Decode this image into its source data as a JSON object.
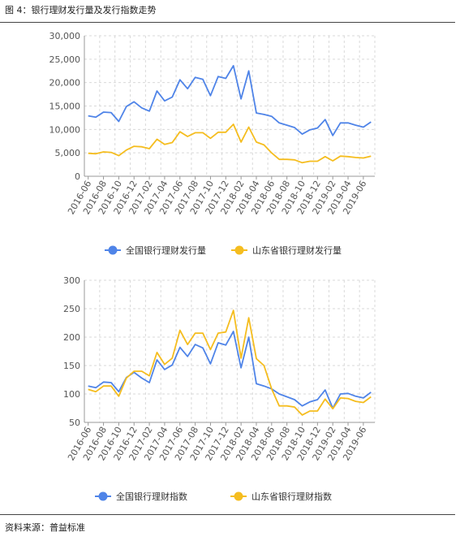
{
  "figure": {
    "title": "图 4：银行理财发行量及发行指数走势",
    "source": "资料来源：普益标准"
  },
  "colors": {
    "blue": "#4f84e8",
    "yellow": "#f5bd1f",
    "grid": "#d9d9d9",
    "axis": "#999999"
  },
  "chart_data": [
    {
      "type": "line",
      "title": "",
      "xlabel": "",
      "ylabel": "",
      "ylim": [
        0,
        30000
      ],
      "yticks": [
        0,
        5000,
        10000,
        15000,
        20000,
        25000,
        30000
      ],
      "yticklabels": [
        "0",
        "5,000",
        "10,000",
        "15,000",
        "20,000",
        "25,000",
        "30,000"
      ],
      "grid": true,
      "legend": "bottom",
      "x": [
        "2016-06",
        "2016-07",
        "2016-08",
        "2016-09",
        "2016-10",
        "2016-11",
        "2016-12",
        "2017-01",
        "2017-02",
        "2017-03",
        "2017-04",
        "2017-05",
        "2017-06",
        "2017-07",
        "2017-08",
        "2017-09",
        "2017-10",
        "2017-11",
        "2017-12",
        "2018-01",
        "2018-02",
        "2018-03",
        "2018-04",
        "2018-05",
        "2018-06",
        "2018-07",
        "2018-08",
        "2018-09",
        "2018-10",
        "2018-11",
        "2018-12",
        "2019-01",
        "2019-02",
        "2019-03",
        "2019-04",
        "2019-05",
        "2019-06",
        "2019-07"
      ],
      "xticklabels": [
        "2016-06",
        "2016-08",
        "2016-10",
        "2016-12",
        "2017-02",
        "2017-04",
        "2017-06",
        "2017-08",
        "2017-10",
        "2017-12",
        "2018-02",
        "2018-04",
        "2018-06",
        "2018-08",
        "2018-10",
        "2018-12",
        "2019-02",
        "2019-04",
        "2019-06"
      ],
      "series": [
        {
          "name": "全国银行理财发行量",
          "color": "#4f84e8",
          "values": [
            12900,
            12600,
            13700,
            13600,
            11700,
            14900,
            15900,
            14600,
            13900,
            18200,
            16100,
            16900,
            20600,
            18700,
            21100,
            20700,
            17200,
            21300,
            20900,
            23600,
            16500,
            22500,
            13500,
            13200,
            12800,
            11400,
            10900,
            10400,
            9000,
            9900,
            10300,
            12100,
            8700,
            11400,
            11400,
            10900,
            10500,
            11600
          ]
        },
        {
          "name": "山东省银行理财发行量",
          "color": "#f5bd1f",
          "values": [
            4900,
            4800,
            5200,
            5100,
            4400,
            5600,
            6400,
            6300,
            5900,
            7900,
            6800,
            7200,
            9500,
            8500,
            9300,
            9300,
            8100,
            9400,
            9400,
            11100,
            7300,
            10500,
            7300,
            6700,
            5000,
            3600,
            3600,
            3500,
            2900,
            3200,
            3200,
            4200,
            3300,
            4300,
            4200,
            4000,
            3900,
            4300
          ]
        }
      ]
    },
    {
      "type": "line",
      "title": "",
      "xlabel": "",
      "ylabel": "",
      "ylim": [
        50,
        300
      ],
      "yticks": [
        50,
        100,
        150,
        200,
        250,
        300
      ],
      "yticklabels": [
        "50",
        "100",
        "150",
        "200",
        "250",
        "300"
      ],
      "grid": true,
      "legend": "bottom",
      "x": [
        "2016-06",
        "2016-07",
        "2016-08",
        "2016-09",
        "2016-10",
        "2016-11",
        "2016-12",
        "2017-01",
        "2017-02",
        "2017-03",
        "2017-04",
        "2017-05",
        "2017-06",
        "2017-07",
        "2017-08",
        "2017-09",
        "2017-10",
        "2017-11",
        "2017-12",
        "2018-01",
        "2018-02",
        "2018-03",
        "2018-04",
        "2018-05",
        "2018-06",
        "2018-07",
        "2018-08",
        "2018-09",
        "2018-10",
        "2018-11",
        "2018-12",
        "2019-01",
        "2019-02",
        "2019-03",
        "2019-04",
        "2019-05",
        "2019-06",
        "2019-07"
      ],
      "xticklabels": [
        "2016-06",
        "2016-08",
        "2016-10",
        "2016-12",
        "2017-02",
        "2017-04",
        "2017-06",
        "2017-08",
        "2017-10",
        "2017-12",
        "2018-02",
        "2018-04",
        "2018-06",
        "2018-08",
        "2018-10",
        "2018-12",
        "2019-02",
        "2019-04",
        "2019-06"
      ],
      "series": [
        {
          "name": "全国银行理财指数",
          "color": "#4f84e8",
          "values": [
            114,
            111,
            121,
            120,
            104,
            129,
            138,
            128,
            120,
            160,
            143,
            151,
            182,
            166,
            187,
            181,
            153,
            190,
            186,
            210,
            146,
            200,
            118,
            114,
            109,
            100,
            95,
            90,
            79,
            86,
            90,
            107,
            75,
            100,
            101,
            96,
            93,
            103
          ]
        },
        {
          "name": "山东省银行理财指数",
          "color": "#f5bd1f",
          "values": [
            108,
            104,
            114,
            114,
            96,
            128,
            140,
            140,
            132,
            173,
            152,
            163,
            212,
            187,
            207,
            207,
            178,
            207,
            209,
            247,
            163,
            234,
            162,
            150,
            109,
            79,
            79,
            77,
            63,
            70,
            70,
            91,
            74,
            93,
            92,
            87,
            85,
            95
          ]
        }
      ]
    }
  ]
}
